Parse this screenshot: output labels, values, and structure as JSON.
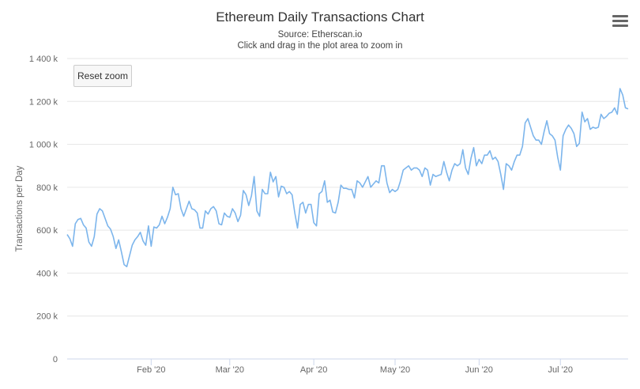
{
  "chart_data": {
    "type": "line",
    "title": "Ethereum Daily Transactions Chart",
    "subtitle": [
      "Source: Etherscan.io",
      "Click and drag in the plot area to zoom in"
    ],
    "ylabel": "Transactions per Day",
    "xlabel": "",
    "ylim": [
      0,
      1400000
    ],
    "y_ticks": [
      0,
      200000,
      400000,
      600000,
      800000,
      1000000,
      1200000,
      1400000
    ],
    "y_tick_labels": [
      "0",
      "200 k",
      "400 k",
      "600 k",
      "800 k",
      "1 000 k",
      "1 200 k",
      "1 400 k"
    ],
    "x_ticks": [
      "Feb '20",
      "Mar '20",
      "Apr '20",
      "May '20",
      "Jun '20",
      "Jul '20"
    ],
    "grid": true,
    "line_color": "#7cb5ec",
    "series": [
      {
        "start": "2020-01-01",
        "interval": "1 day",
        "values": [
          580000,
          560000,
          525000,
          630000,
          650000,
          655000,
          625000,
          610000,
          545000,
          525000,
          570000,
          675000,
          700000,
          690000,
          655000,
          620000,
          605000,
          570000,
          515000,
          555000,
          500000,
          440000,
          430000,
          480000,
          530000,
          555000,
          570000,
          590000,
          550000,
          530000,
          620000,
          525000,
          615000,
          610000,
          625000,
          665000,
          630000,
          660000,
          700000,
          800000,
          765000,
          770000,
          700000,
          665000,
          700000,
          735000,
          700000,
          695000,
          680000,
          610000,
          610000,
          690000,
          675000,
          700000,
          710000,
          690000,
          630000,
          625000,
          680000,
          665000,
          660000,
          700000,
          680000,
          640000,
          670000,
          785000,
          765000,
          715000,
          760000,
          850000,
          690000,
          665000,
          790000,
          770000,
          770000,
          870000,
          825000,
          850000,
          755000,
          805000,
          800000,
          770000,
          780000,
          765000,
          680000,
          610000,
          720000,
          730000,
          680000,
          720000,
          720000,
          635000,
          620000,
          770000,
          780000,
          830000,
          730000,
          740000,
          685000,
          680000,
          730000,
          810000,
          795000,
          795000,
          790000,
          790000,
          750000,
          830000,
          820000,
          800000,
          825000,
          850000,
          800000,
          815000,
          830000,
          820000,
          900000,
          900000,
          820000,
          775000,
          790000,
          780000,
          790000,
          830000,
          880000,
          890000,
          900000,
          880000,
          890000,
          890000,
          880000,
          850000,
          890000,
          880000,
          810000,
          860000,
          850000,
          855000,
          860000,
          920000,
          870000,
          830000,
          880000,
          910000,
          900000,
          910000,
          975000,
          890000,
          860000,
          935000,
          985000,
          900000,
          930000,
          910000,
          950000,
          950000,
          970000,
          930000,
          940000,
          920000,
          860000,
          790000,
          910000,
          900000,
          880000,
          920000,
          950000,
          950000,
          990000,
          1100000,
          1120000,
          1080000,
          1040000,
          1020000,
          1020000,
          1000000,
          1060000,
          1110000,
          1050000,
          1040000,
          1020000,
          940000,
          880000,
          1040000,
          1070000,
          1090000,
          1075000,
          1050000,
          990000,
          1005000,
          1150000,
          1105000,
          1120000,
          1070000,
          1080000,
          1075000,
          1080000,
          1140000,
          1120000,
          1130000,
          1145000,
          1150000,
          1170000,
          1140000,
          1260000,
          1230000,
          1170000,
          1165000
        ]
      }
    ]
  },
  "reset_zoom_label": "Reset zoom",
  "menu_icon": "hamburger-menu-icon"
}
